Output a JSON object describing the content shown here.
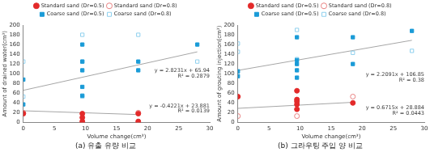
{
  "chart_data": [
    {
      "type": "scatter",
      "title": "(a) 유출 유량 비교",
      "x_label": "Volume change(cm³)",
      "y_label": "Amount of drained water(cm³)",
      "xlim": [
        0,
        30
      ],
      "xticks": [
        0,
        5,
        10,
        15,
        20,
        25,
        30
      ],
      "ylim": [
        0,
        200
      ],
      "yticks": [
        0,
        20,
        40,
        60,
        80,
        100,
        120,
        140,
        160,
        180,
        200
      ],
      "grid": false,
      "legend": "top",
      "series": [
        {
          "name": "Standard sand (Dr=0.5)",
          "color": "#e32a2a",
          "marker": "circle",
          "x": [
            0,
            9.5,
            9.5,
            9.5,
            18.5,
            18.5
          ],
          "values": [
            18,
            18,
            10,
            2,
            18,
            2
          ]
        },
        {
          "name": "Standard sand (Dr=0.8)",
          "color": "#e88080",
          "marker": "circle-open",
          "x": [
            0,
            18.5
          ],
          "values": [
            20,
            20
          ]
        },
        {
          "name": "Coarse sand (Dr=0.5)",
          "color": "#1a9bd7",
          "marker": "square",
          "x": [
            0,
            0,
            9.5,
            9.5,
            9.5,
            9.5,
            9.5,
            18.5,
            18.5,
            28
          ],
          "values": [
            88,
            37,
            160,
            125,
            107,
            73,
            55,
            125,
            107,
            160
          ]
        },
        {
          "name": "Coarse sand (Dr=0.8)",
          "color": "#8fd0ee",
          "marker": "square-open",
          "x": [
            0,
            0,
            9.5,
            9.5,
            9.5,
            18.5,
            28
          ],
          "values": [
            125,
            53,
            180,
            125,
            53,
            180,
            125
          ]
        },
        {
          "type": "line",
          "color": "#a6a6a6",
          "line_style": "solid",
          "x": [
            0,
            28
          ],
          "values": [
            65.94,
            145
          ]
        },
        {
          "type": "line",
          "color": "#a6a6a6",
          "line_style": "solid",
          "x": [
            0,
            18.5
          ],
          "values": [
            23.9,
            16.1
          ]
        }
      ],
      "annotations": [
        {
          "text": "y = 2.8231x + 65.94",
          "x": 30,
          "y": 106
        },
        {
          "text": "R² = 0.2879",
          "x": 30,
          "y": 95
        },
        {
          "text": "y = -0.4221x + 23.881",
          "x": 30,
          "y": 34
        },
        {
          "text": "R² = 0.0139",
          "x": 30,
          "y": 23
        }
      ]
    },
    {
      "type": "scatter",
      "title": "(b) 그라우팅 주입 양 비교",
      "x_label": "Volume change(cm³)",
      "y_label": "Amount of grouting injection(cm³)",
      "xlim": [
        0,
        30
      ],
      "xticks": [
        0,
        5,
        10,
        15,
        20,
        25,
        30
      ],
      "ylim": [
        0,
        200
      ],
      "yticks": [
        0,
        20,
        40,
        60,
        80,
        100,
        120,
        140,
        160,
        180,
        200
      ],
      "grid": false,
      "legend": "top",
      "series": [
        {
          "name": "Standard sand (Dr=0.5)",
          "color": "#e32a2a",
          "marker": "circle",
          "x": [
            0,
            9.5,
            9.5,
            9.5,
            9.5,
            9.5,
            18.5
          ],
          "values": [
            53,
            65,
            47,
            43,
            37,
            27,
            40
          ]
        },
        {
          "name": "Standard sand (Dr=0.8)",
          "color": "#e88080",
          "marker": "circle-open",
          "x": [
            0,
            9.5,
            18.5
          ],
          "values": [
            13,
            13,
            53
          ]
        },
        {
          "name": "Coarse sand (Dr=0.5)",
          "color": "#1a9bd7",
          "marker": "square",
          "x": [
            0,
            0,
            9.5,
            9.5,
            9.5,
            9.5,
            9.5,
            18.5,
            18.5,
            28
          ],
          "values": [
            95,
            105,
            175,
            128,
            120,
            107,
            92,
            175,
            120,
            188
          ]
        },
        {
          "name": "Coarse sand (Dr=0.8)",
          "color": "#8fd0ee",
          "marker": "square-open",
          "x": [
            0,
            0,
            9.5,
            9.5,
            18.5,
            28
          ],
          "values": [
            145,
            162,
            190,
            130,
            143,
            147
          ]
        },
        {
          "type": "line",
          "color": "#a6a6a6",
          "line_style": "solid",
          "x": [
            0,
            28
          ],
          "values": [
            106.85,
            168.7
          ]
        },
        {
          "type": "line",
          "color": "#a6a6a6",
          "line_style": "solid",
          "x": [
            0,
            18.5
          ],
          "values": [
            28.9,
            41.3
          ]
        }
      ],
      "annotations": [
        {
          "text": "y = 2.2091x + 106.85",
          "x": 30,
          "y": 98
        },
        {
          "text": "R² = 0.38",
          "x": 30,
          "y": 87
        },
        {
          "text": "y = 0.6715x + 28.884",
          "x": 30,
          "y": 30
        },
        {
          "text": "R² = 0.0443",
          "x": 30,
          "y": 19
        }
      ]
    }
  ]
}
